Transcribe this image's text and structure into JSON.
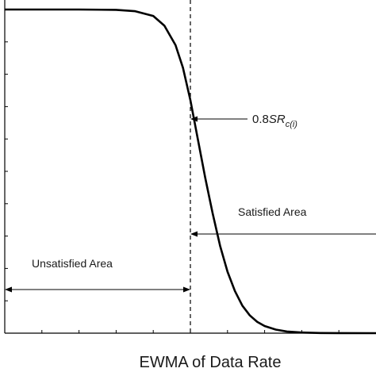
{
  "chart_data": {
    "type": "line",
    "title": "",
    "xlabel": "EWMA of Data Rate",
    "ylabel": "",
    "xlim": [
      0,
      10
    ],
    "ylim": [
      0,
      1
    ],
    "grid": false,
    "legend": "none",
    "series": [
      {
        "x": [
          0,
          1,
          2,
          3,
          3.5,
          4,
          4.3,
          4.6,
          4.8,
          5.0,
          5.2,
          5.4,
          5.6,
          5.8,
          6.0,
          6.2,
          6.4,
          6.6,
          6.8,
          7.0,
          7.3,
          7.6,
          8.0,
          8.5,
          9,
          10
        ],
        "y": [
          1.0,
          1.0,
          1.0,
          0.999,
          0.995,
          0.98,
          0.95,
          0.89,
          0.82,
          0.72,
          0.6,
          0.48,
          0.37,
          0.27,
          0.19,
          0.13,
          0.085,
          0.055,
          0.035,
          0.022,
          0.011,
          0.005,
          0.002,
          0.0005,
          0.0001,
          0.0
        ]
      }
    ],
    "threshold_x": 5.0,
    "annotations": {
      "threshold_label": {
        "prefix": "0.8",
        "symbol": "SR",
        "subscript": "c(i)"
      },
      "satisfied_label": "Satisfied Area",
      "unsatisfied_label": "Unsatisfied Area"
    },
    "colors": {
      "curve": "#000000",
      "axis": "#000000",
      "text": "#1a1a1a"
    }
  }
}
